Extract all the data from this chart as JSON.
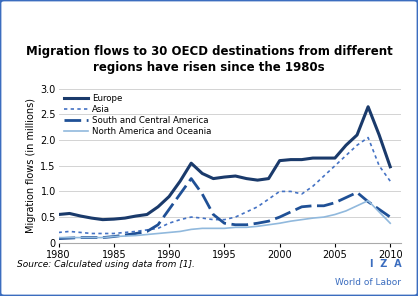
{
  "title": "Migration flows to 30 OECD destinations from different\nregions have risen since the 1980s",
  "ylabel": "Migration flows (in millions)",
  "source_text": "Source: Calculated using data from [1].",
  "xlim": [
    1980,
    2011
  ],
  "ylim": [
    0,
    3.0
  ],
  "yticks": [
    0,
    0.5,
    1.0,
    1.5,
    2.0,
    2.5,
    3.0
  ],
  "xticks": [
    1980,
    1985,
    1990,
    1995,
    2000,
    2005,
    2010
  ],
  "background_color": "#ffffff",
  "border_color": "#3b6dbf",
  "europe_color": "#1a3a6b",
  "asia_color": "#4472c4",
  "sca_color": "#1f5096",
  "nao_color": "#91b9dd",
  "europe": {
    "years": [
      1980,
      1981,
      1982,
      1983,
      1984,
      1985,
      1986,
      1987,
      1988,
      1989,
      1990,
      1991,
      1992,
      1993,
      1994,
      1995,
      1996,
      1997,
      1998,
      1999,
      2000,
      2001,
      2002,
      2003,
      2004,
      2005,
      2006,
      2007,
      2008,
      2009,
      2010
    ],
    "values": [
      0.55,
      0.57,
      0.52,
      0.48,
      0.45,
      0.46,
      0.48,
      0.52,
      0.55,
      0.7,
      0.9,
      1.2,
      1.55,
      1.35,
      1.25,
      1.28,
      1.3,
      1.25,
      1.22,
      1.25,
      1.6,
      1.62,
      1.62,
      1.65,
      1.65,
      1.65,
      1.9,
      2.1,
      2.65,
      2.1,
      1.48
    ]
  },
  "asia": {
    "years": [
      1980,
      1981,
      1982,
      1983,
      1984,
      1985,
      1986,
      1987,
      1988,
      1989,
      1990,
      1991,
      1992,
      1993,
      1994,
      1995,
      1996,
      1997,
      1998,
      1999,
      2000,
      2001,
      2002,
      2003,
      2004,
      2005,
      2006,
      2007,
      2008,
      2009,
      2010
    ],
    "values": [
      0.2,
      0.22,
      0.2,
      0.18,
      0.18,
      0.18,
      0.2,
      0.22,
      0.25,
      0.28,
      0.38,
      0.45,
      0.5,
      0.48,
      0.45,
      0.45,
      0.5,
      0.6,
      0.7,
      0.85,
      1.0,
      1.0,
      0.95,
      1.1,
      1.3,
      1.5,
      1.7,
      1.9,
      2.05,
      1.5,
      1.2
    ]
  },
  "south_central_america": {
    "years": [
      1980,
      1981,
      1982,
      1983,
      1984,
      1985,
      1986,
      1987,
      1988,
      1989,
      1990,
      1991,
      1992,
      1993,
      1994,
      1995,
      1996,
      1997,
      1998,
      1999,
      2000,
      2001,
      2002,
      2003,
      2004,
      2005,
      2006,
      2007,
      2008,
      2009,
      2010
    ],
    "values": [
      0.08,
      0.09,
      0.1,
      0.1,
      0.1,
      0.12,
      0.15,
      0.18,
      0.22,
      0.35,
      0.65,
      0.95,
      1.25,
      0.95,
      0.55,
      0.38,
      0.35,
      0.35,
      0.38,
      0.42,
      0.5,
      0.6,
      0.7,
      0.72,
      0.72,
      0.78,
      0.88,
      0.98,
      0.8,
      0.65,
      0.5
    ]
  },
  "north_america_oceania": {
    "years": [
      1980,
      1981,
      1982,
      1983,
      1984,
      1985,
      1986,
      1987,
      1988,
      1989,
      1990,
      1991,
      1992,
      1993,
      1994,
      1995,
      1996,
      1997,
      1998,
      1999,
      2000,
      2001,
      2002,
      2003,
      2004,
      2005,
      2006,
      2007,
      2008,
      2009,
      2010
    ],
    "values": [
      0.1,
      0.1,
      0.1,
      0.1,
      0.1,
      0.12,
      0.13,
      0.14,
      0.16,
      0.18,
      0.2,
      0.22,
      0.26,
      0.28,
      0.28,
      0.28,
      0.3,
      0.3,
      0.32,
      0.35,
      0.38,
      0.42,
      0.45,
      0.48,
      0.5,
      0.55,
      0.62,
      0.72,
      0.82,
      0.6,
      0.38
    ]
  }
}
